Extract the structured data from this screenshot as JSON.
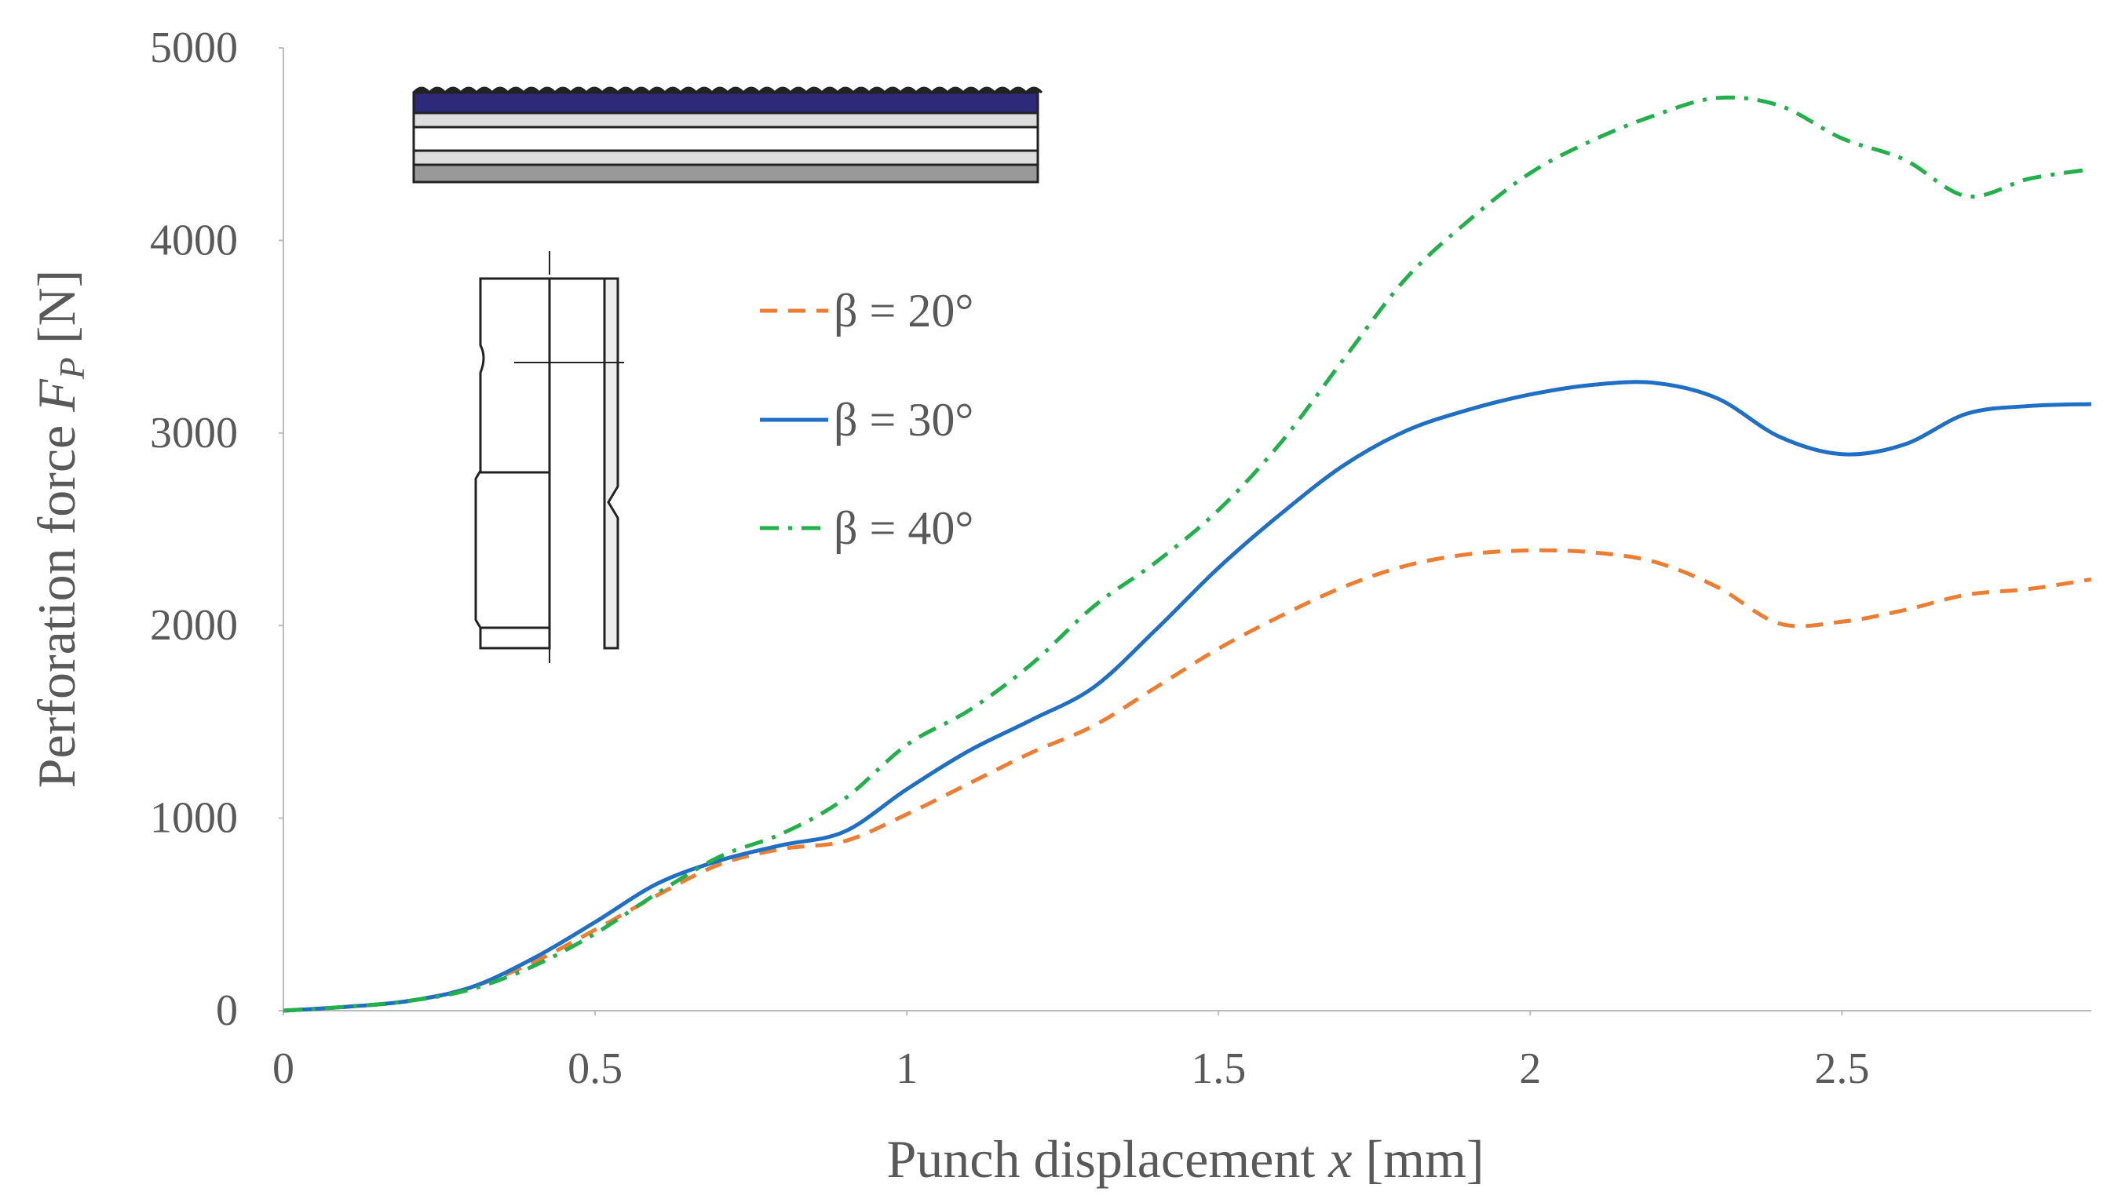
{
  "chart_data": {
    "type": "line",
    "xlabel": [
      "Punch displacement ",
      "x",
      " [mm]"
    ],
    "ylabel": [
      "Perforation force ",
      "F",
      "P",
      " [N]"
    ],
    "x": [
      0,
      0.1,
      0.2,
      0.3,
      0.4,
      0.5,
      0.6,
      0.7,
      0.8,
      0.9,
      1.0,
      1.1,
      1.2,
      1.3,
      1.4,
      1.5,
      1.6,
      1.7,
      1.8,
      1.9,
      2.0,
      2.1,
      2.2,
      2.3,
      2.4,
      2.5,
      2.6,
      2.7,
      2.8,
      2.9
    ],
    "series": [
      {
        "name": "β = 20°",
        "color": "#ed7d31",
        "style": "dashed",
        "values": [
          0,
          20,
          50,
          120,
          250,
          420,
          600,
          760,
          840,
          880,
          1020,
          1180,
          1340,
          1480,
          1680,
          1880,
          2050,
          2200,
          2310,
          2370,
          2390,
          2380,
          2330,
          2200,
          2010,
          2020,
          2080,
          2160,
          2190,
          2240
        ]
      },
      {
        "name": "β = 30°",
        "color": "#1f6fc5",
        "style": "solid",
        "values": [
          0,
          20,
          50,
          120,
          270,
          460,
          660,
          780,
          860,
          930,
          1150,
          1350,
          1510,
          1680,
          1980,
          2300,
          2580,
          2830,
          3010,
          3120,
          3200,
          3250,
          3260,
          3180,
          2980,
          2890,
          2940,
          3100,
          3140,
          3150
        ]
      },
      {
        "name": "β = 40°",
        "color": "#22b04b",
        "style": "dashdot",
        "values": [
          0,
          20,
          50,
          110,
          230,
          400,
          610,
          800,
          920,
          1100,
          1380,
          1560,
          1800,
          2100,
          2330,
          2600,
          2950,
          3380,
          3800,
          4100,
          4350,
          4520,
          4650,
          4740,
          4700,
          4530,
          4420,
          4230,
          4320,
          4370
        ]
      }
    ],
    "xlim": [
      0,
      2.9
    ],
    "xticks": [
      0,
      0.5,
      1,
      1.5,
      2,
      2.5
    ],
    "ylim": [
      0,
      5000
    ],
    "yticks": [
      0,
      1000,
      2000,
      3000,
      4000,
      5000
    ],
    "grid": false
  }
}
